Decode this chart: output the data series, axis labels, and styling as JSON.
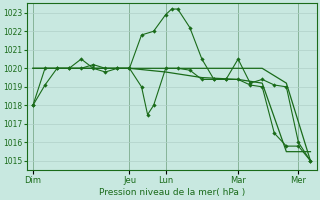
{
  "title": "Pression niveau de la mer( hPa )",
  "bg_color": "#c8e8e0",
  "grid_color": "#b0d0c8",
  "line_color": "#1a6b1a",
  "ylim": [
    1014.5,
    1023.5
  ],
  "yticks": [
    1015,
    1016,
    1017,
    1018,
    1019,
    1020,
    1021,
    1022,
    1023
  ],
  "xlim": [
    0,
    24
  ],
  "day_labels": [
    "Dim",
    "Jeu",
    "Lun",
    "Mar",
    "Mer"
  ],
  "day_positions": [
    0.5,
    8.5,
    11.5,
    17.5,
    22.5
  ],
  "vline_positions": [
    0.5,
    8.5,
    11.5,
    17.5,
    22.5
  ],
  "series": [
    {
      "x": [
        0.5,
        1.5,
        2.5,
        3.5,
        4.5,
        5.5,
        6.5,
        7.5,
        8.5,
        9.5,
        10.5,
        11.5,
        12.0,
        12.5,
        13.5,
        14.5,
        15.5,
        16.5,
        17.5,
        18.5,
        19.5,
        20.5,
        21.5,
        22.5,
        23.5
      ],
      "y": [
        1018.0,
        1019.1,
        1020.0,
        1020.0,
        1020.5,
        1020.0,
        1019.8,
        1020.0,
        1020.0,
        1021.8,
        1022.0,
        1022.9,
        1023.2,
        1023.2,
        1022.2,
        1020.5,
        1019.4,
        1019.4,
        1020.5,
        1019.2,
        1019.4,
        1019.1,
        1019.0,
        1016.0,
        1015.0
      ],
      "marker": true
    },
    {
      "x": [
        0.5,
        1.5,
        2.5,
        3.5,
        4.5,
        5.5,
        6.5,
        7.5,
        8.5,
        9.5,
        10.0,
        10.5,
        11.5,
        12.5,
        13.5,
        14.5,
        15.5,
        16.5,
        17.5,
        18.5,
        19.5,
        20.5,
        21.5,
        22.5,
        23.5
      ],
      "y": [
        1018.0,
        1020.0,
        1020.0,
        1020.0,
        1020.0,
        1020.2,
        1020.0,
        1020.0,
        1020.0,
        1019.0,
        1017.5,
        1018.0,
        1020.0,
        1020.0,
        1019.9,
        1019.4,
        1019.4,
        1019.4,
        1019.4,
        1019.1,
        1019.0,
        1016.5,
        1015.8,
        1015.8,
        1015.0
      ],
      "marker": true
    },
    {
      "x": [
        0.5,
        3.5,
        8.5,
        11.5,
        14.5,
        17.5,
        19.5,
        21.5,
        23.5
      ],
      "y": [
        1020.0,
        1020.0,
        1020.0,
        1020.0,
        1020.0,
        1020.0,
        1020.0,
        1019.2,
        1015.0
      ],
      "marker": false
    },
    {
      "x": [
        0.5,
        3.5,
        8.5,
        11.5,
        14.5,
        17.5,
        19.5,
        21.5,
        23.5
      ],
      "y": [
        1020.0,
        1020.0,
        1020.0,
        1019.8,
        1019.5,
        1019.4,
        1019.2,
        1015.5,
        1015.5
      ],
      "marker": false
    }
  ]
}
